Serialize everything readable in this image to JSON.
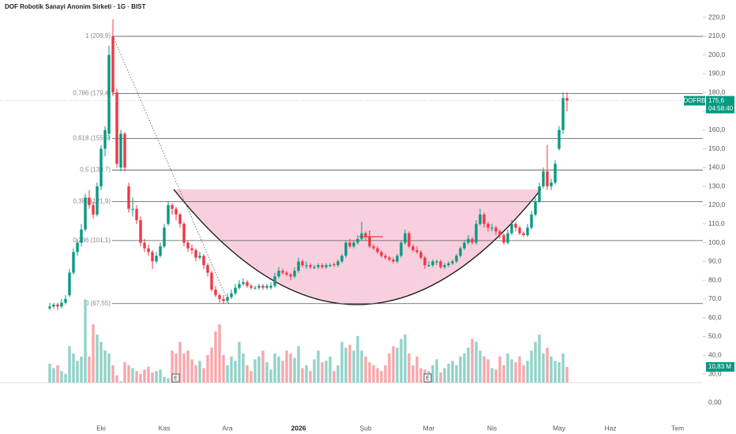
{
  "chart_data": {
    "type": "candlestick",
    "title": "DOF Robotik Sanayi Anonim Sirketi · 1G · BIST",
    "symbol": "DOFRB",
    "last_price_label": "175,6",
    "countdown": "04:58:40",
    "volume_label": "10,83 M",
    "lower_pane_label": "0,00",
    "event_markers": [
      "E",
      "E"
    ],
    "grid": false,
    "colors": {
      "up": "#089981",
      "down": "#f23645",
      "up_volume": "#92d2c9",
      "down_volume": "#f7a7ab"
    },
    "ylim": [
      25.4,
      229.25
    ],
    "yticks": [
      {
        "value": 30,
        "label": "30,0"
      },
      {
        "value": 40,
        "label": "40,0"
      },
      {
        "value": 50,
        "label": "50,0"
      },
      {
        "value": 60,
        "label": "60,0"
      },
      {
        "value": 70,
        "label": "70,0"
      },
      {
        "value": 80,
        "label": "80,0"
      },
      {
        "value": 90,
        "label": "90,0"
      },
      {
        "value": 100,
        "label": "100,0"
      },
      {
        "value": 110,
        "label": "110,0"
      },
      {
        "value": 120,
        "label": "120,0"
      },
      {
        "value": 130,
        "label": "130,0"
      },
      {
        "value": 140,
        "label": "140,0"
      },
      {
        "value": 150,
        "label": "150,0"
      },
      {
        "value": 160,
        "label": "160,0"
      },
      {
        "value": 170,
        "label": "170,0"
      },
      {
        "value": 180,
        "label": "180,0"
      },
      {
        "value": 190,
        "label": "190,0"
      },
      {
        "value": 200,
        "label": "200,0"
      },
      {
        "value": 210,
        "label": "210,0"
      },
      {
        "value": 220,
        "label": "220,0"
      }
    ],
    "fib_levels": [
      {
        "value": 209.9,
        "label": "1 (209,9)"
      },
      {
        "value": 179.4,
        "label": "0,786 (179,4)"
      },
      {
        "value": 155.5,
        "label": "0,618 (155,5)"
      },
      {
        "value": 138.7,
        "label": "0,5 (138,7)"
      },
      {
        "value": 121.9,
        "label": "0,382 (121,9)"
      },
      {
        "value": 101.1,
        "label": "0,236 (101,1)"
      },
      {
        "value": 67.55,
        "label": "0 (67,55)"
      }
    ],
    "categories": [
      null,
      null,
      null,
      null,
      null,
      null,
      null,
      null,
      null,
      null,
      null,
      null,
      null,
      "Eki",
      null,
      null,
      null,
      null,
      null,
      null,
      null,
      null,
      null,
      null,
      null,
      null,
      null,
      null,
      null,
      "Kas",
      null,
      null,
      null,
      null,
      null,
      null,
      null,
      null,
      null,
      null,
      null,
      null,
      null,
      null,
      null,
      "Ara",
      null,
      null,
      null,
      null,
      null,
      null,
      null,
      null,
      null,
      null,
      null,
      null,
      null,
      null,
      null,
      null,
      null,
      "2026",
      null,
      null,
      null,
      null,
      null,
      null,
      null,
      null,
      null,
      null,
      null,
      null,
      null,
      null,
      null,
      null,
      "Şub",
      null,
      null,
      null,
      null,
      null,
      null,
      null,
      null,
      null,
      null,
      null,
      null,
      null,
      null,
      null,
      "Mar",
      null,
      null,
      null,
      null,
      null,
      null,
      null,
      null,
      null,
      null,
      null,
      null,
      null,
      null,
      null,
      "Nis",
      null,
      null,
      null,
      null,
      null,
      null,
      null,
      null,
      null,
      null,
      null,
      null,
      null,
      null,
      null,
      null,
      "May",
      null,
      null,
      null,
      null,
      null,
      null,
      null,
      null,
      null,
      null,
      null,
      null,
      "Haz",
      null,
      null,
      null,
      null,
      null,
      null,
      null,
      null,
      null,
      null,
      null,
      null,
      null,
      null,
      null,
      null,
      "Tem"
    ],
    "ohlc": [
      [
        65,
        68,
        64,
        66
      ],
      [
        66,
        68,
        65,
        67
      ],
      [
        67,
        68,
        64,
        66
      ],
      [
        66,
        70,
        65,
        68
      ],
      [
        68,
        72,
        67,
        70
      ],
      [
        72,
        86,
        71,
        84
      ],
      [
        84,
        97,
        83,
        95
      ],
      [
        95,
        102,
        93,
        100
      ],
      [
        100,
        110,
        98,
        107
      ],
      [
        107,
        126,
        106,
        124
      ],
      [
        124,
        128,
        118,
        120
      ],
      [
        120,
        122,
        113,
        115
      ],
      [
        115,
        132,
        114,
        130
      ],
      [
        130,
        152,
        128,
        150
      ],
      [
        150,
        162,
        146,
        160
      ],
      [
        158,
        205,
        155,
        200
      ],
      [
        209.9,
        219,
        178,
        180
      ],
      [
        180,
        182,
        140,
        142
      ],
      [
        140,
        160,
        138,
        158
      ],
      [
        158,
        159,
        138,
        140
      ],
      [
        130,
        132,
        116,
        118
      ],
      [
        118,
        124,
        114,
        118
      ],
      [
        118,
        120,
        110,
        112
      ],
      [
        112,
        114,
        98,
        100
      ],
      [
        100,
        102,
        95,
        97
      ],
      [
        97,
        99,
        93,
        95
      ],
      [
        95,
        96,
        86,
        90
      ],
      [
        90,
        95,
        89,
        93
      ],
      [
        93,
        100,
        92,
        98
      ],
      [
        98,
        110,
        97,
        108
      ],
      [
        110,
        122,
        109,
        120
      ],
      [
        120,
        121,
        115,
        118
      ],
      [
        118,
        119,
        112,
        115
      ],
      [
        115,
        116,
        108,
        110
      ],
      [
        110,
        111,
        98,
        100
      ],
      [
        100,
        101,
        95,
        97
      ],
      [
        97,
        99,
        94,
        96
      ],
      [
        96,
        97,
        90,
        92
      ],
      [
        92,
        95,
        91,
        93
      ],
      [
        93,
        94,
        86,
        88
      ],
      [
        88,
        89,
        82,
        84
      ],
      [
        84,
        85,
        74,
        75
      ],
      [
        75,
        77,
        71,
        72
      ],
      [
        72,
        73,
        68,
        70
      ],
      [
        70,
        72,
        67.55,
        69
      ],
      [
        69,
        73,
        68,
        71
      ],
      [
        71,
        75,
        70,
        73
      ],
      [
        73,
        78,
        72,
        76
      ],
      [
        76,
        80,
        75,
        78
      ],
      [
        78,
        81,
        77,
        79
      ],
      [
        79,
        80,
        76,
        77
      ],
      [
        77,
        78,
        75,
        76
      ],
      [
        76,
        77,
        75,
        76
      ],
      [
        76,
        78,
        75,
        77
      ],
      [
        77,
        78,
        75,
        76
      ],
      [
        76,
        78,
        75,
        77
      ],
      [
        76,
        79,
        75,
        77
      ],
      [
        77,
        84,
        76,
        82
      ],
      [
        82,
        87,
        81,
        85
      ],
      [
        85,
        86,
        83,
        84
      ],
      [
        84,
        85,
        82,
        83
      ],
      [
        83,
        84,
        80,
        82
      ],
      [
        82,
        87,
        81,
        85
      ],
      [
        85,
        92,
        84,
        90
      ],
      [
        90,
        91,
        87,
        88
      ],
      [
        87.5,
        90,
        86,
        88
      ],
      [
        88,
        89,
        86,
        87
      ],
      [
        86.5,
        88,
        86,
        87
      ],
      [
        87,
        89,
        86,
        88
      ],
      [
        88,
        89,
        86,
        87
      ],
      [
        87,
        89,
        86,
        88
      ],
      [
        87.5,
        89,
        87,
        88
      ],
      [
        88.5,
        89.5,
        87,
        88
      ],
      [
        88,
        91,
        87,
        90
      ],
      [
        90,
        94,
        89,
        93
      ],
      [
        93,
        101,
        92,
        100
      ],
      [
        100,
        102,
        97,
        98
      ],
      [
        98,
        101,
        97,
        100
      ],
      [
        100,
        104,
        99,
        102
      ],
      [
        102,
        111,
        101,
        105
      ],
      [
        105,
        106,
        101,
        103
      ],
      [
        103,
        104,
        97,
        98
      ],
      [
        98,
        99,
        96,
        97
      ],
      [
        97,
        98,
        94,
        95
      ],
      [
        95,
        96,
        92,
        93
      ],
      [
        93,
        94,
        91,
        92
      ],
      [
        92,
        93,
        90,
        91
      ],
      [
        91,
        92,
        89,
        90
      ],
      [
        90,
        94,
        89,
        93
      ],
      [
        93,
        101,
        92,
        100
      ],
      [
        100,
        107,
        99,
        105
      ],
      [
        105,
        106,
        97,
        98
      ],
      [
        98,
        99,
        95,
        96
      ],
      [
        96,
        98,
        94,
        95
      ],
      [
        95,
        96,
        91,
        92
      ],
      [
        92,
        93,
        86,
        88
      ],
      [
        87.5,
        90,
        87,
        88
      ],
      [
        88,
        91,
        87,
        90
      ],
      [
        89.5,
        91,
        88,
        90
      ],
      [
        90,
        91,
        86,
        87
      ],
      [
        87,
        89,
        86,
        88
      ],
      [
        88,
        90,
        87,
        89
      ],
      [
        89,
        91,
        88,
        90
      ],
      [
        90,
        94,
        89,
        93
      ],
      [
        93,
        98,
        92,
        97
      ],
      [
        97,
        101,
        96,
        100
      ],
      [
        100,
        104,
        99,
        102
      ],
      [
        102,
        103,
        99,
        100
      ],
      [
        100,
        112,
        99,
        110
      ],
      [
        110,
        118,
        109,
        115
      ],
      [
        115,
        116,
        108,
        110
      ],
      [
        110,
        111,
        106,
        108
      ],
      [
        107.5,
        110,
        106,
        108
      ],
      [
        108,
        109,
        104,
        106
      ],
      [
        106,
        107,
        102,
        104
      ],
      [
        104,
        105,
        99,
        100
      ],
      [
        100,
        107,
        99,
        105
      ],
      [
        105,
        112,
        104,
        110
      ],
      [
        110,
        111,
        106,
        108
      ],
      [
        108,
        109,
        104,
        105
      ],
      [
        105,
        106,
        103,
        104
      ],
      [
        104,
        110,
        103,
        108
      ],
      [
        108,
        117,
        107,
        115
      ],
      [
        115,
        124,
        114,
        122
      ],
      [
        122,
        132,
        121,
        130
      ],
      [
        130,
        140,
        129,
        138
      ],
      [
        138,
        152,
        128,
        130
      ],
      [
        130,
        134,
        128,
        132
      ],
      [
        132,
        144,
        131,
        142
      ],
      [
        150,
        162,
        149,
        160
      ],
      [
        160,
        180,
        158,
        177
      ],
      [
        177,
        180,
        170,
        175.6
      ],
      null,
      null,
      null,
      null,
      null,
      null,
      null,
      null,
      null,
      null,
      null,
      null,
      null,
      null,
      null,
      null,
      null,
      null,
      null,
      null,
      null,
      null,
      null,
      null,
      null,
      null,
      null,
      null
    ],
    "volume": [
      13,
      10,
      12,
      8,
      6,
      25,
      20,
      15,
      18,
      57,
      18,
      40,
      33,
      28,
      22,
      20,
      12,
      5,
      1,
      14,
      12,
      10,
      8,
      6,
      9,
      11,
      7,
      8,
      9,
      4,
      3,
      22,
      20,
      28,
      20,
      22,
      16,
      12,
      15,
      10,
      19,
      24,
      35,
      40,
      19,
      12,
      18,
      15,
      28,
      20,
      12,
      8,
      16,
      18,
      22,
      14,
      9,
      20,
      18,
      15,
      22,
      20,
      17,
      25,
      10,
      12,
      8,
      16,
      22,
      14,
      15,
      18,
      8,
      12,
      28,
      24,
      26,
      22,
      32,
      22,
      18,
      14,
      12,
      10,
      8,
      12,
      20,
      25,
      24,
      30,
      33,
      20,
      12,
      18,
      10,
      9,
      8,
      12,
      16,
      7,
      10,
      13,
      15,
      12,
      18,
      20,
      24,
      30,
      28,
      22,
      18,
      16,
      10,
      9,
      18,
      12,
      20,
      16,
      14,
      18,
      12,
      15,
      22,
      28,
      33,
      20,
      24,
      18,
      15,
      14,
      20,
      10.83,
      null,
      null,
      null,
      null,
      null,
      null,
      null,
      null,
      null,
      null,
      null,
      null,
      null,
      null,
      null,
      null,
      null,
      null,
      null,
      null,
      null,
      null,
      null,
      null,
      null,
      null,
      null,
      null
    ]
  }
}
